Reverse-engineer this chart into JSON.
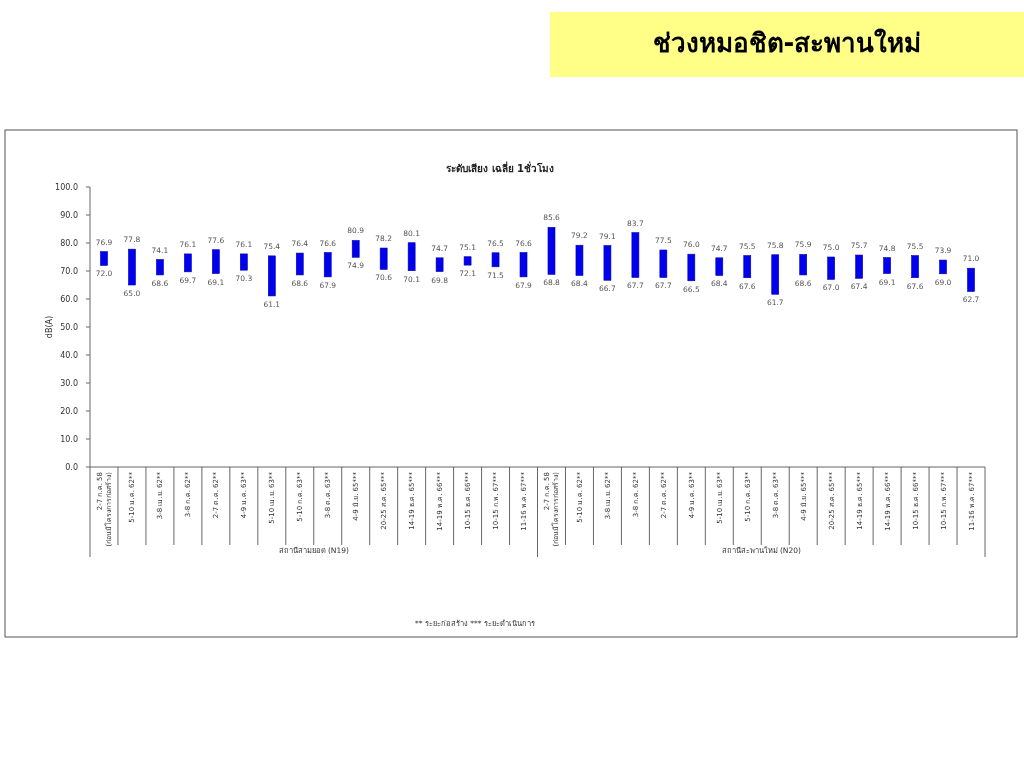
{
  "chart_data": {
    "type": "bar",
    "title": "ช่วงหมอชิต-สะพานใหม่",
    "subtitle": "ระดับเสียง เฉลี่ย 1ชั่วโมง",
    "ylabel": "dB(A)",
    "categories": [
      "2-7 ก.ค. 58\n(ก่อนมีโครงการก่อสร้าง)",
      "5-10 ม.ค. 62**",
      "3-8 เม.ย. 62**",
      "3-8 ก.ค. 62**",
      "2-7 ต.ค. 62**",
      "4-9 ม.ค. 63**",
      "5-10 เม.ย. 63**",
      "5-10 ก.ค. 63**",
      "3-8 ต.ค. 63**",
      "4-9 มิ.ย. 65***",
      "20-25 ส.ค. 65***",
      "14-19 ธ.ค. 65***",
      "14-19 พ.ค. 66***",
      "10-15 ธ.ค. 66***",
      "10-15 ก.พ. 67***",
      "11-16 พ.ค. 67***",
      "2-7 ก.ค. 58\n(ก่อนมีโครงการก่อสร้าง)",
      "5-10 ม.ค. 62**",
      "3-8 เม.ย. 62**",
      "3-8 ก.ค. 62**",
      "2-7 ต.ค. 62**",
      "4-9 ม.ค. 63**",
      "5-10 เม.ย. 63**",
      "5-10 ก.ค. 63**",
      "3-8 ต.ค. 63**",
      "4-9 มิ.ย. 65***",
      "20-25 ส.ค. 65***",
      "14-19 ธ.ค. 65***",
      "14-19 พ.ค. 66***",
      "10-15 ธ.ค. 66***",
      "10-15 ก.พ. 67***",
      "11-16 พ.ค. 67***"
    ],
    "base": [
      72.0,
      65.0,
      68.6,
      69.7,
      69.1,
      70.3,
      61.1,
      68.6,
      67.9,
      74.9,
      70.6,
      70.1,
      69.8,
      72.1,
      71.5,
      67.9,
      68.8,
      68.4,
      66.7,
      67.7,
      67.7,
      66.5,
      68.4,
      67.6,
      61.7,
      68.6,
      67.0,
      67.4,
      69.1,
      67.6,
      69.0,
      62.7
    ],
    "values": [
      4.9,
      12.8,
      5.5,
      6.4,
      8.5,
      5.8,
      14.3,
      7.8,
      8.7,
      6.0,
      7.6,
      10.0,
      4.9,
      3.0,
      5.0,
      8.7,
      16.8,
      10.8,
      12.4,
      16.0,
      9.8,
      9.5,
      6.3,
      7.9,
      14.1,
      7.3,
      8.0,
      8.3,
      5.7,
      7.9,
      4.9,
      8.3
    ],
    "value_labels": [
      [
        "76.9",
        "72.0"
      ],
      [
        "77.8",
        "65.0"
      ],
      [
        "74.1",
        "68.6"
      ],
      [
        "76.1",
        "69.7"
      ],
      [
        "77.6",
        "69.1"
      ],
      [
        "76.1",
        "70.3"
      ],
      [
        "75.4",
        "61.1"
      ],
      [
        "76.4",
        "68.6"
      ],
      [
        "76.6",
        "67.9"
      ],
      [
        "80.9",
        "74.9"
      ],
      [
        "78.2",
        "70.6"
      ],
      [
        "80.1",
        "70.1"
      ],
      [
        "74.7",
        "69.8"
      ],
      [
        "75.1",
        "72.1"
      ],
      [
        "76.5",
        "71.5"
      ],
      [
        "76.6",
        "67.9"
      ],
      [
        "85.6",
        "68.8"
      ],
      [
        "79.2",
        "68.4"
      ],
      [
        "79.1",
        "66.7"
      ],
      [
        "83.7",
        "67.7"
      ],
      [
        "77.5",
        "67.7"
      ],
      [
        "76.0",
        "66.5"
      ],
      [
        "74.7",
        "68.4"
      ],
      [
        "75.5",
        "67.6"
      ],
      [
        "75.8",
        "61.7"
      ],
      [
        "75.9",
        "68.6"
      ],
      [
        "75.0",
        "67.0"
      ],
      [
        "75.7",
        "67.4"
      ],
      [
        "74.8",
        "69.1"
      ],
      [
        "75.5",
        "67.6"
      ],
      [
        "73.9",
        "69.0"
      ],
      [
        "71.0",
        "62.7"
      ]
    ],
    "color": "#0000ee",
    "ylim": [
      0,
      100
    ],
    "yticks": [
      {
        "value": 0,
        "label": "0.0"
      },
      {
        "value": 10,
        "label": "10.0"
      },
      {
        "value": 20,
        "label": "20.0"
      },
      {
        "value": 30,
        "label": "30.0"
      },
      {
        "value": 40,
        "label": "40.0"
      },
      {
        "value": 50,
        "label": "50.0"
      },
      {
        "value": 60,
        "label": "60.0"
      },
      {
        "value": 70,
        "label": "70.0"
      },
      {
        "value": 80,
        "label": "80.0"
      },
      {
        "value": 90,
        "label": "90.0"
      },
      {
        "value": 100,
        "label": "100.0"
      }
    ],
    "annotations": [
      "สถานีสามยอด (N19)",
      "สถานีสะพานใหม่ (N20)",
      "** ระยะก่อสร้าง    *** ระยะดำเนินการ"
    ]
  }
}
